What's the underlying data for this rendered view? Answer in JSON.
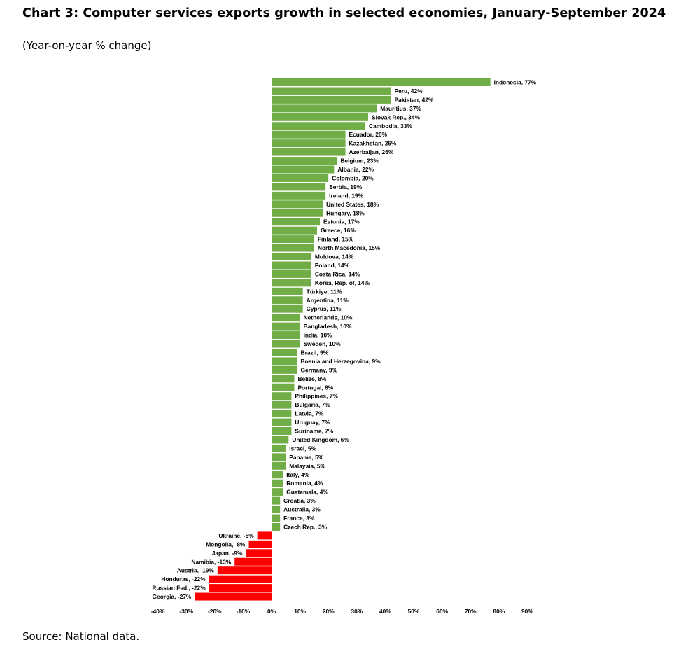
{
  "chart_data": {
    "type": "bar",
    "orientation": "horizontal",
    "title": "Chart 3: Computer services exports growth in selected economies, January-September 2024",
    "subtitle": "(Year-on-year % change)",
    "source": "Source: National data.",
    "xlim": [
      -40,
      90
    ],
    "x_ticks": [
      -40,
      -30,
      -20,
      -10,
      0,
      10,
      20,
      30,
      40,
      50,
      60,
      70,
      80,
      90
    ],
    "x_tick_labels": [
      "-40%",
      "-30%",
      "-20%",
      "-10%",
      "0%",
      "10%",
      "20%",
      "30%",
      "40%",
      "50%",
      "60%",
      "70%",
      "80%",
      "90%"
    ],
    "positive_color": "#70ad47",
    "negative_color": "#ff0000",
    "bars": [
      {
        "label": "Indonesia, 77%",
        "name": "Indonesia",
        "value": 77
      },
      {
        "label": "Peru, 42%",
        "name": "Peru",
        "value": 42
      },
      {
        "label": "Pakistan, 42%",
        "name": "Pakistan",
        "value": 42
      },
      {
        "label": "Mauritius, 37%",
        "name": "Mauritius",
        "value": 37
      },
      {
        "label": "Slovak Rep., 34%",
        "name": "Slovak Rep.",
        "value": 34
      },
      {
        "label": "Cambodia, 33%",
        "name": "Cambodia",
        "value": 33
      },
      {
        "label": "Ecuador, 26%",
        "name": "Ecuador",
        "value": 26
      },
      {
        "label": "Kazakhstan, 26%",
        "name": "Kazakhstan",
        "value": 26
      },
      {
        "label": "Azerbaijan, 26%",
        "name": "Azerbaijan",
        "value": 26
      },
      {
        "label": "Belgium, 23%",
        "name": "Belgium",
        "value": 23
      },
      {
        "label": "Albania, 22%",
        "name": "Albania",
        "value": 22
      },
      {
        "label": "Colombia, 20%",
        "name": "Colombia",
        "value": 20
      },
      {
        "label": "Serbia, 19%",
        "name": "Serbia",
        "value": 19
      },
      {
        "label": "Ireland, 19%",
        "name": "Ireland",
        "value": 19
      },
      {
        "label": "United States, 18%",
        "name": "United States",
        "value": 18
      },
      {
        "label": "Hungary, 18%",
        "name": "Hungary",
        "value": 18
      },
      {
        "label": "Estonia, 17%",
        "name": "Estonia",
        "value": 17
      },
      {
        "label": "Greece, 16%",
        "name": "Greece",
        "value": 16
      },
      {
        "label": "Finland, 15%",
        "name": "Finland",
        "value": 15
      },
      {
        "label": "North Macedonia, 15%",
        "name": "North Macedonia",
        "value": 15
      },
      {
        "label": "Moldova, 14%",
        "name": "Moldova",
        "value": 14
      },
      {
        "label": "Poland, 14%",
        "name": "Poland",
        "value": 14
      },
      {
        "label": "Costa Rica, 14%",
        "name": "Costa Rica",
        "value": 14
      },
      {
        "label": "Korea, Rep. of, 14%",
        "name": "Korea, Rep. of",
        "value": 14
      },
      {
        "label": "Türkiye, 11%",
        "name": "Türkiye",
        "value": 11
      },
      {
        "label": "Argentina, 11%",
        "name": "Argentina",
        "value": 11
      },
      {
        "label": "Cyprus, 11%",
        "name": "Cyprus",
        "value": 11
      },
      {
        "label": "Netherlands, 10%",
        "name": "Netherlands",
        "value": 10
      },
      {
        "label": "Bangladesh, 10%",
        "name": "Bangladesh",
        "value": 10
      },
      {
        "label": "India, 10%",
        "name": "India",
        "value": 10
      },
      {
        "label": "Sweden, 10%",
        "name": "Sweden",
        "value": 10
      },
      {
        "label": "Brazil, 9%",
        "name": "Brazil",
        "value": 9
      },
      {
        "label": "Bosnia and Herzegovina, 9%",
        "name": "Bosnia and Herzegovina",
        "value": 9
      },
      {
        "label": "Germany, 9%",
        "name": "Germany",
        "value": 9
      },
      {
        "label": "Belize, 8%",
        "name": "Belize",
        "value": 8
      },
      {
        "label": "Portugal, 8%",
        "name": "Portugal",
        "value": 8
      },
      {
        "label": "Philippines, 7%",
        "name": "Philippines",
        "value": 7
      },
      {
        "label": "Bulgaria, 7%",
        "name": "Bulgaria",
        "value": 7
      },
      {
        "label": "Latvia, 7%",
        "name": "Latvia",
        "value": 7
      },
      {
        "label": "Uruguay, 7%",
        "name": "Uruguay",
        "value": 7
      },
      {
        "label": "Suriname, 7%",
        "name": "Suriname",
        "value": 7
      },
      {
        "label": "United Kingdom, 6%",
        "name": "United Kingdom",
        "value": 6
      },
      {
        "label": "Israel, 5%",
        "name": "Israel",
        "value": 5
      },
      {
        "label": "Panama, 5%",
        "name": "Panama",
        "value": 5
      },
      {
        "label": "Malaysia, 5%",
        "name": "Malaysia",
        "value": 5
      },
      {
        "label": "Italy, 4%",
        "name": "Italy",
        "value": 4
      },
      {
        "label": "Romania, 4%",
        "name": "Romania",
        "value": 4
      },
      {
        "label": "Guatemala, 4%",
        "name": "Guatemala",
        "value": 4
      },
      {
        "label": "Croatia, 3%",
        "name": "Croatia",
        "value": 3
      },
      {
        "label": "Australia, 3%",
        "name": "Australia",
        "value": 3
      },
      {
        "label": "France, 3%",
        "name": "France",
        "value": 3
      },
      {
        "label": "Czech Rep., 3%",
        "name": "Czech Rep.",
        "value": 3
      },
      {
        "label": "Ukraine, -5%",
        "name": "Ukraine",
        "value": -5
      },
      {
        "label": "Mongolia, -8%",
        "name": "Mongolia",
        "value": -8
      },
      {
        "label": "Japan, -9%",
        "name": "Japan",
        "value": -9
      },
      {
        "label": "Namibia, -13%",
        "name": "Namibia",
        "value": -13
      },
      {
        "label": "Austria, -19%",
        "name": "Austria",
        "value": -19
      },
      {
        "label": "Honduras, -22%",
        "name": "Honduras",
        "value": -22
      },
      {
        "label": "Russian Fed., -22%",
        "name": "Russian Fed.",
        "value": -22
      },
      {
        "label": "Georgia, -27%",
        "name": "Georgia",
        "value": -27
      }
    ]
  }
}
